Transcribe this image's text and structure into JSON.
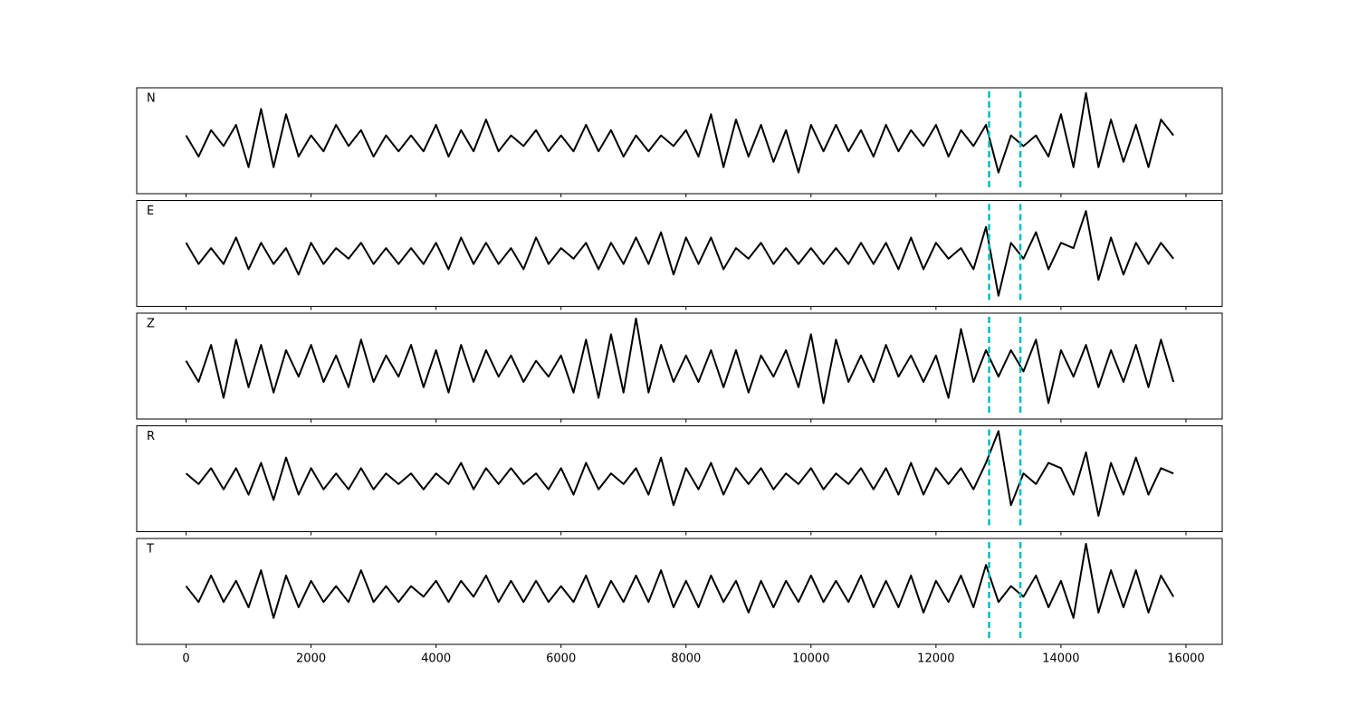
{
  "chart_data": {
    "type": "line",
    "x": [
      0,
      200,
      400,
      600,
      800,
      1000,
      1200,
      1400,
      1600,
      1800,
      2000,
      2200,
      2400,
      2600,
      2800,
      3000,
      3200,
      3400,
      3600,
      3800,
      4000,
      4200,
      4400,
      4600,
      4800,
      5000,
      5200,
      5400,
      5600,
      5800,
      6000,
      6200,
      6400,
      6600,
      6800,
      7000,
      7200,
      7400,
      7600,
      7800,
      8000,
      8200,
      8400,
      8600,
      8800,
      9000,
      9200,
      9400,
      9600,
      9800,
      10000,
      10200,
      10400,
      10600,
      10800,
      11000,
      11200,
      11400,
      11600,
      11800,
      12000,
      12200,
      12400,
      12600,
      12800,
      13000,
      13200,
      13400,
      13600,
      13800,
      14000,
      14200,
      14400,
      14600,
      14800,
      15000,
      15200,
      15400,
      15600,
      15800
    ],
    "series": [
      {
        "name": "N",
        "color": "#000000",
        "values": [
          0.1,
          -0.3,
          0.2,
          -0.1,
          0.3,
          -0.5,
          0.6,
          -0.5,
          0.5,
          -0.3,
          0.1,
          -0.2,
          0.3,
          -0.1,
          0.2,
          -0.3,
          0.1,
          -0.2,
          0.1,
          -0.2,
          0.3,
          -0.3,
          0.2,
          -0.2,
          0.4,
          -0.2,
          0.1,
          -0.1,
          0.2,
          -0.2,
          0.1,
          -0.2,
          0.3,
          -0.2,
          0.2,
          -0.3,
          0.1,
          -0.2,
          0.1,
          -0.1,
          0.2,
          -0.3,
          0.5,
          -0.5,
          0.4,
          -0.3,
          0.3,
          -0.4,
          0.2,
          -0.6,
          0.3,
          -0.2,
          0.3,
          -0.2,
          0.2,
          -0.3,
          0.3,
          -0.2,
          0.2,
          -0.1,
          0.3,
          -0.3,
          0.2,
          -0.1,
          0.3,
          -0.6,
          0.1,
          -0.1,
          0.1,
          -0.3,
          0.5,
          -0.5,
          0.9,
          -0.5,
          0.4,
          -0.4,
          0.3,
          -0.5,
          0.4,
          0.1
        ]
      },
      {
        "name": "E",
        "color": "#000000",
        "values": [
          0.2,
          -0.2,
          0.1,
          -0.2,
          0.3,
          -0.3,
          0.2,
          -0.2,
          0.1,
          -0.4,
          0.2,
          -0.2,
          0.1,
          -0.1,
          0.2,
          -0.2,
          0.1,
          -0.2,
          0.1,
          -0.2,
          0.2,
          -0.3,
          0.3,
          -0.2,
          0.2,
          -0.2,
          0.1,
          -0.3,
          0.3,
          -0.2,
          0.1,
          -0.1,
          0.2,
          -0.3,
          0.2,
          -0.2,
          0.3,
          -0.2,
          0.4,
          -0.4,
          0.3,
          -0.2,
          0.3,
          -0.3,
          0.1,
          -0.1,
          0.2,
          -0.2,
          0.1,
          -0.2,
          0.1,
          -0.2,
          0.1,
          -0.2,
          0.2,
          -0.2,
          0.2,
          -0.3,
          0.3,
          -0.3,
          0.2,
          -0.1,
          0.1,
          -0.3,
          0.5,
          -0.8,
          0.2,
          -0.1,
          0.4,
          -0.3,
          0.2,
          0.1,
          0.8,
          -0.5,
          0.3,
          -0.4,
          0.2,
          -0.2,
          0.2,
          -0.1
        ]
      },
      {
        "name": "Z",
        "color": "#000000",
        "values": [
          0.1,
          -0.3,
          0.4,
          -0.6,
          0.5,
          -0.4,
          0.4,
          -0.5,
          0.3,
          -0.2,
          0.4,
          -0.3,
          0.2,
          -0.4,
          0.5,
          -0.3,
          0.2,
          -0.2,
          0.4,
          -0.4,
          0.3,
          -0.5,
          0.4,
          -0.3,
          0.3,
          -0.2,
          0.2,
          -0.3,
          0.1,
          -0.2,
          0.2,
          -0.5,
          0.5,
          -0.6,
          0.6,
          -0.5,
          0.9,
          -0.5,
          0.4,
          -0.3,
          0.2,
          -0.3,
          0.3,
          -0.4,
          0.3,
          -0.5,
          0.2,
          -0.2,
          0.3,
          -0.4,
          0.6,
          -0.7,
          0.5,
          -0.3,
          0.2,
          -0.3,
          0.4,
          -0.2,
          0.2,
          -0.3,
          0.2,
          -0.6,
          0.7,
          -0.3,
          0.3,
          -0.2,
          0.3,
          -0.1,
          0.5,
          -0.7,
          0.3,
          -0.2,
          0.4,
          -0.4,
          0.3,
          -0.3,
          0.4,
          -0.4,
          0.5,
          -0.3
        ]
      },
      {
        "name": "R",
        "color": "#000000",
        "values": [
          0.1,
          -0.1,
          0.2,
          -0.2,
          0.2,
          -0.3,
          0.3,
          -0.4,
          0.4,
          -0.3,
          0.2,
          -0.2,
          0.1,
          -0.2,
          0.2,
          -0.2,
          0.1,
          -0.1,
          0.1,
          -0.2,
          0.1,
          -0.1,
          0.3,
          -0.2,
          0.2,
          -0.1,
          0.2,
          -0.1,
          0.1,
          -0.2,
          0.2,
          -0.3,
          0.3,
          -0.2,
          0.1,
          -0.1,
          0.2,
          -0.3,
          0.4,
          -0.5,
          0.2,
          -0.2,
          0.3,
          -0.3,
          0.2,
          -0.1,
          0.2,
          -0.2,
          0.1,
          -0.1,
          0.2,
          -0.2,
          0.1,
          -0.1,
          0.2,
          -0.2,
          0.2,
          -0.3,
          0.3,
          -0.3,
          0.2,
          -0.1,
          0.2,
          -0.2,
          0.3,
          0.9,
          -0.5,
          0.1,
          -0.1,
          0.3,
          0.2,
          -0.3,
          0.5,
          -0.7,
          0.3,
          -0.3,
          0.4,
          -0.3,
          0.2,
          0.1
        ]
      },
      {
        "name": "T",
        "color": "#000000",
        "values": [
          0.1,
          -0.2,
          0.3,
          -0.2,
          0.2,
          -0.3,
          0.4,
          -0.5,
          0.3,
          -0.3,
          0.2,
          -0.2,
          0.1,
          -0.2,
          0.4,
          -0.2,
          0.1,
          -0.2,
          0.1,
          -0.1,
          0.2,
          -0.2,
          0.2,
          -0.1,
          0.3,
          -0.2,
          0.2,
          -0.2,
          0.2,
          -0.2,
          0.1,
          -0.2,
          0.3,
          -0.3,
          0.2,
          -0.2,
          0.3,
          -0.2,
          0.4,
          -0.3,
          0.2,
          -0.3,
          0.3,
          -0.2,
          0.2,
          -0.4,
          0.2,
          -0.3,
          0.2,
          -0.2,
          0.3,
          -0.2,
          0.2,
          -0.2,
          0.3,
          -0.3,
          0.2,
          -0.3,
          0.3,
          -0.4,
          0.2,
          -0.2,
          0.3,
          -0.3,
          0.5,
          -0.2,
          0.1,
          -0.1,
          0.3,
          -0.3,
          0.2,
          -0.5,
          0.9,
          -0.4,
          0.4,
          -0.3,
          0.4,
          -0.4,
          0.3,
          -0.1
        ]
      }
    ],
    "vlines": [
      12850,
      13350
    ],
    "vline_color": "#00bfbf",
    "xlim": [
      -790,
      16580
    ],
    "xticks": [
      0,
      2000,
      4000,
      6000,
      8000,
      10000,
      12000,
      14000,
      16000
    ],
    "ylim": [
      -1,
      1
    ]
  }
}
